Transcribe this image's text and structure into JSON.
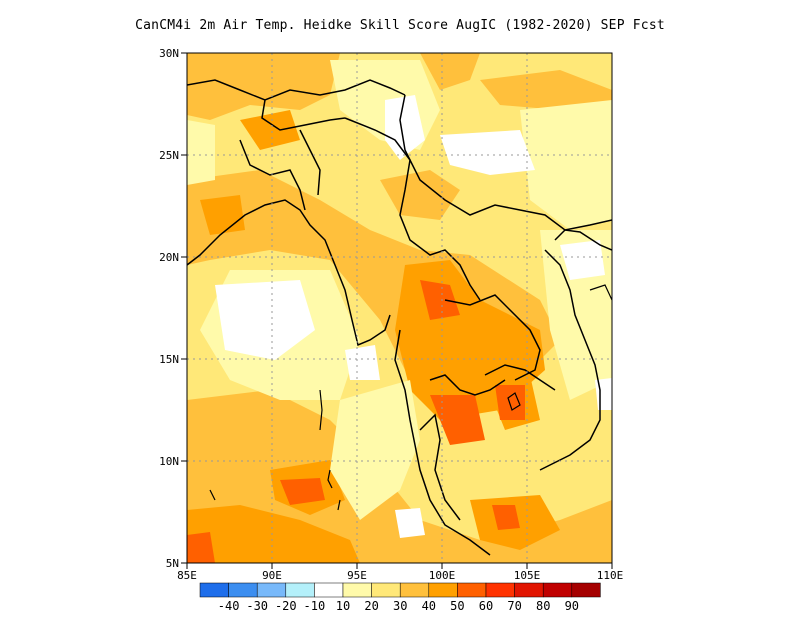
{
  "title": "CanCM4i  2m Air Temp. Heidke Skill Score AugIC (1982-2020) SEP Fcst",
  "axes": {
    "lon_labels": [
      "85E",
      "90E",
      "95E",
      "100E",
      "105E",
      "110E"
    ],
    "lat_labels": [
      "30N",
      "25N",
      "20N",
      "15N",
      "10N",
      "5N"
    ],
    "lon_range": [
      85,
      110
    ],
    "lat_range": [
      5,
      30
    ],
    "grid": "dotted"
  },
  "colorbar": {
    "labels": [
      "-40",
      "-30",
      "-20",
      "-10",
      "10",
      "20",
      "30",
      "40",
      "50",
      "60",
      "70",
      "80",
      "90"
    ],
    "colors": [
      "#1e6eeb",
      "#3c8ef0",
      "#78b9fa",
      "#b4f0fa",
      "#ffffff",
      "#fffaaa",
      "#ffe878",
      "#ffc03c",
      "#ffa000",
      "#ff6000",
      "#ff3200",
      "#e11400",
      "#c00000",
      "#a50000"
    ]
  }
}
